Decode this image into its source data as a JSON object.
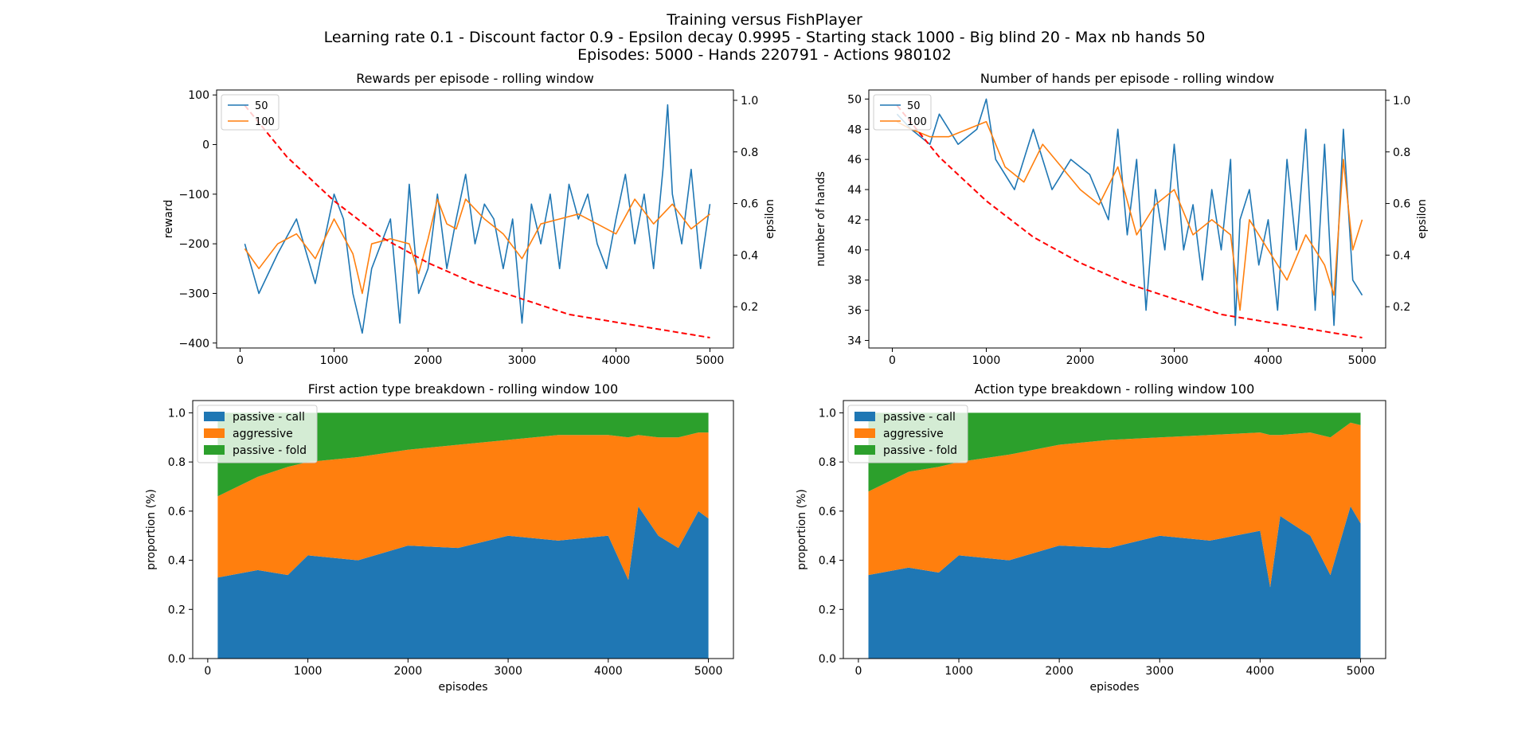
{
  "figure": {
    "title_lines": [
      "Training versus FishPlayer",
      "Learning rate 0.1 - Discount factor 0.9 - Epsilon decay 0.9995 - Starting stack 1000 - Big blind 20 - Max nb hands 50",
      "Episodes: 5000 - Hands 220791 - Actions 980102"
    ]
  },
  "colors": {
    "blue": "#1f77b4",
    "orange": "#ff7f0e",
    "green": "#2ca02c",
    "red": "#ff0000"
  },
  "chart_data": [
    {
      "id": "rewards",
      "type": "line",
      "title": "Rewards per episode - rolling window",
      "xlabel": "",
      "ylabel": "reward",
      "y2label": "epsilon",
      "xlim": [
        -250,
        5250
      ],
      "ylim": [
        -410,
        110
      ],
      "y2lim": [
        0.04,
        1.04
      ],
      "xticks": [
        0,
        1000,
        2000,
        3000,
        4000,
        5000
      ],
      "yticks": [
        -400,
        -300,
        -200,
        -100,
        0,
        100
      ],
      "y2ticks": [
        0.2,
        0.4,
        0.6,
        0.8,
        1.0
      ],
      "legend_position": "upper-left",
      "series": [
        {
          "name": "50",
          "color": "#1f77b4",
          "x": [
            50,
            200,
            400,
            600,
            800,
            1000,
            1100,
            1200,
            1300,
            1400,
            1600,
            1700,
            1800,
            1900,
            2000,
            2100,
            2200,
            2300,
            2400,
            2500,
            2600,
            2700,
            2800,
            2900,
            3000,
            3100,
            3200,
            3300,
            3400,
            3500,
            3600,
            3700,
            3800,
            3900,
            4000,
            4100,
            4200,
            4300,
            4400,
            4500,
            4550,
            4600,
            4700,
            4800,
            4900,
            5000
          ],
          "y": [
            -200,
            -300,
            -220,
            -150,
            -280,
            -100,
            -150,
            -300,
            -380,
            -250,
            -150,
            -360,
            -80,
            -300,
            -250,
            -100,
            -250,
            -150,
            -60,
            -200,
            -120,
            -150,
            -250,
            -150,
            -360,
            -120,
            -200,
            -100,
            -250,
            -80,
            -150,
            -100,
            -200,
            -250,
            -150,
            -60,
            -200,
            -100,
            -250,
            -50,
            80,
            -100,
            -200,
            -50,
            -250,
            -120
          ]
        },
        {
          "name": "100",
          "color": "#ff7f0e",
          "x": [
            50,
            200,
            400,
            600,
            800,
            1000,
            1200,
            1300,
            1400,
            1600,
            1800,
            1900,
            2000,
            2100,
            2200,
            2300,
            2400,
            2600,
            2800,
            3000,
            3200,
            3400,
            3600,
            3800,
            4000,
            4200,
            4400,
            4600,
            4800,
            5000
          ],
          "y": [
            -210,
            -250,
            -200,
            -180,
            -230,
            -150,
            -220,
            -300,
            -200,
            -190,
            -200,
            -260,
            -190,
            -110,
            -160,
            -170,
            -110,
            -150,
            -180,
            -230,
            -160,
            -150,
            -140,
            -160,
            -180,
            -110,
            -160,
            -120,
            -170,
            -140
          ]
        },
        {
          "name": "epsilon",
          "color": "#ff0000",
          "dashed": true,
          "axis": "right",
          "x": [
            50,
            500,
            1000,
            1500,
            2000,
            2500,
            3000,
            3500,
            4000,
            4500,
            5000
          ],
          "y": [
            0.98,
            0.78,
            0.61,
            0.47,
            0.37,
            0.29,
            0.23,
            0.17,
            0.14,
            0.11,
            0.08
          ]
        }
      ]
    },
    {
      "id": "hands",
      "type": "line",
      "title": "Number of hands per episode - rolling window",
      "xlabel": "",
      "ylabel": "number of hands",
      "y2label": "epsilon",
      "xlim": [
        -250,
        5250
      ],
      "ylim": [
        33.5,
        50.6
      ],
      "y2lim": [
        0.04,
        1.04
      ],
      "xticks": [
        0,
        1000,
        2000,
        3000,
        4000,
        5000
      ],
      "yticks": [
        34,
        36,
        38,
        40,
        42,
        44,
        46,
        48,
        50
      ],
      "y2ticks": [
        0.2,
        0.4,
        0.6,
        0.8,
        1.0
      ],
      "legend_position": "upper-left",
      "series": [
        {
          "name": "50",
          "color": "#1f77b4",
          "x": [
            50,
            200,
            400,
            500,
            700,
            900,
            1000,
            1100,
            1300,
            1500,
            1700,
            1900,
            2100,
            2300,
            2400,
            2500,
            2600,
            2700,
            2800,
            2900,
            3000,
            3100,
            3200,
            3300,
            3400,
            3500,
            3600,
            3650,
            3700,
            3800,
            3900,
            4000,
            4100,
            4200,
            4300,
            4400,
            4500,
            4600,
            4700,
            4800,
            4900,
            5000
          ],
          "y": [
            49,
            48,
            47,
            49,
            47,
            48,
            50,
            46,
            44,
            48,
            44,
            46,
            45,
            42,
            48,
            41,
            46,
            36,
            44,
            40,
            47,
            40,
            43,
            38,
            44,
            40,
            46,
            35,
            42,
            44,
            39,
            42,
            36,
            46,
            40,
            48,
            36,
            47,
            35,
            48,
            38,
            37
          ]
        },
        {
          "name": "100",
          "color": "#ff7f0e",
          "x": [
            50,
            200,
            400,
            600,
            800,
            1000,
            1200,
            1400,
            1600,
            1800,
            2000,
            2200,
            2400,
            2600,
            2800,
            3000,
            3200,
            3400,
            3600,
            3700,
            3800,
            4000,
            4200,
            4400,
            4600,
            4700,
            4800,
            4900,
            5000
          ],
          "y": [
            48.5,
            48,
            47.5,
            47.5,
            48,
            48.5,
            45.5,
            44.5,
            47,
            45.5,
            44,
            43,
            45.5,
            41,
            43,
            44,
            41,
            42,
            41,
            36,
            42,
            40,
            38,
            41,
            39,
            37,
            46,
            40,
            42
          ]
        },
        {
          "name": "epsilon",
          "color": "#ff0000",
          "dashed": true,
          "axis": "right",
          "x": [
            50,
            500,
            1000,
            1500,
            2000,
            2500,
            3000,
            3500,
            4000,
            4500,
            5000
          ],
          "y": [
            0.98,
            0.78,
            0.61,
            0.47,
            0.37,
            0.29,
            0.23,
            0.17,
            0.14,
            0.11,
            0.08
          ]
        }
      ]
    },
    {
      "id": "first_action",
      "type": "area",
      "stacked": true,
      "title": "First action type breakdown - rolling window 100",
      "xlabel": "episodes",
      "ylabel": "proportion (%)",
      "xlim": [
        -150,
        5250
      ],
      "ylim": [
        0,
        1.05
      ],
      "xticks": [
        0,
        1000,
        2000,
        3000,
        4000,
        5000
      ],
      "yticks": [
        0.0,
        0.2,
        0.4,
        0.6,
        0.8,
        1.0
      ],
      "legend_position": "upper-left",
      "x": [
        100,
        500,
        800,
        1000,
        1500,
        2000,
        2500,
        3000,
        3500,
        4000,
        4200,
        4300,
        4500,
        4700,
        4900,
        5000
      ],
      "series": [
        {
          "name": "passive - call",
          "color": "#1f77b4",
          "values": [
            0.33,
            0.36,
            0.34,
            0.42,
            0.4,
            0.46,
            0.45,
            0.5,
            0.48,
            0.5,
            0.32,
            0.62,
            0.5,
            0.45,
            0.6,
            0.57
          ]
        },
        {
          "name": "aggressive",
          "color": "#ff7f0e",
          "values": [
            0.33,
            0.38,
            0.44,
            0.38,
            0.42,
            0.39,
            0.42,
            0.39,
            0.43,
            0.41,
            0.58,
            0.29,
            0.4,
            0.45,
            0.32,
            0.35
          ]
        },
        {
          "name": "passive - fold",
          "color": "#2ca02c",
          "values": [
            0.34,
            0.26,
            0.22,
            0.2,
            0.18,
            0.15,
            0.13,
            0.11,
            0.09,
            0.09,
            0.1,
            0.09,
            0.1,
            0.1,
            0.08,
            0.08
          ]
        }
      ]
    },
    {
      "id": "action",
      "type": "area",
      "stacked": true,
      "title": "Action type breakdown - rolling window 100",
      "xlabel": "episodes",
      "ylabel": "proportion (%)",
      "xlim": [
        -150,
        5250
      ],
      "ylim": [
        0,
        1.05
      ],
      "xticks": [
        0,
        1000,
        2000,
        3000,
        4000,
        5000
      ],
      "yticks": [
        0.0,
        0.2,
        0.4,
        0.6,
        0.8,
        1.0
      ],
      "legend_position": "upper-left",
      "x": [
        100,
        500,
        800,
        1000,
        1500,
        2000,
        2500,
        3000,
        3500,
        4000,
        4100,
        4200,
        4500,
        4700,
        4900,
        5000
      ],
      "series": [
        {
          "name": "passive - call",
          "color": "#1f77b4",
          "values": [
            0.34,
            0.37,
            0.35,
            0.42,
            0.4,
            0.46,
            0.45,
            0.5,
            0.48,
            0.52,
            0.29,
            0.58,
            0.5,
            0.34,
            0.62,
            0.55
          ]
        },
        {
          "name": "aggressive",
          "color": "#ff7f0e",
          "values": [
            0.34,
            0.39,
            0.43,
            0.38,
            0.43,
            0.41,
            0.44,
            0.4,
            0.43,
            0.4,
            0.62,
            0.33,
            0.42,
            0.56,
            0.34,
            0.4
          ]
        },
        {
          "name": "passive - fold",
          "color": "#2ca02c",
          "values": [
            0.32,
            0.24,
            0.22,
            0.2,
            0.17,
            0.13,
            0.11,
            0.1,
            0.09,
            0.08,
            0.09,
            0.09,
            0.08,
            0.1,
            0.04,
            0.05
          ]
        }
      ]
    }
  ]
}
